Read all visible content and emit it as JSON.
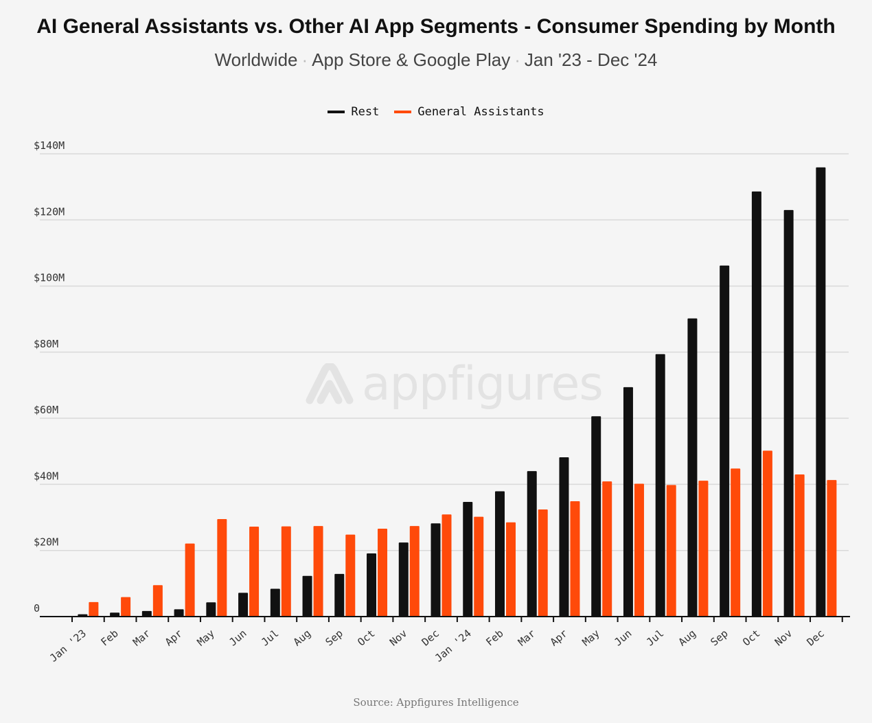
{
  "header": {
    "title": "AI General Assistants vs. Other AI App Segments - Consumer Spending by Month",
    "subtitle_parts": [
      "Worldwide",
      "App Store & Google Play",
      "Jan '23 - Dec '24"
    ],
    "subtitle_separator": "·"
  },
  "watermark": {
    "text": "appfigures",
    "icon": "appfigures-logo-icon"
  },
  "footer": {
    "source": "Source: Appfigures Intelligence"
  },
  "colors": {
    "rest": "#111111",
    "general_assistants": "#ff4a0a",
    "grid": "#d9d9d9"
  },
  "chart_data": {
    "type": "bar",
    "categories": [
      "Jan '23",
      "Feb",
      "Mar",
      "Apr",
      "May",
      "Jun",
      "Jul",
      "Aug",
      "Sep",
      "Oct",
      "Nov",
      "Dec",
      "Jan '24",
      "Feb",
      "Mar",
      "Apr",
      "May",
      "Jun",
      "Jul",
      "Aug",
      "Sep",
      "Oct",
      "Nov",
      "Dec"
    ],
    "series": [
      {
        "name": "Rest",
        "values": [
          0.7,
          1.2,
          1.7,
          2.2,
          4.3,
          7.2,
          8.4,
          12.3,
          12.9,
          19.1,
          22.4,
          28.2,
          34.7,
          37.9,
          44.0,
          48.2,
          60.6,
          69.4,
          79.4,
          90.2,
          106.2,
          128.6,
          123.0,
          135.9
        ]
      },
      {
        "name": "General Assistants",
        "values": [
          4.4,
          5.9,
          9.5,
          22.1,
          29.5,
          27.2,
          27.3,
          27.4,
          24.8,
          26.6,
          27.4,
          30.9,
          30.2,
          28.5,
          32.4,
          34.9,
          40.9,
          40.2,
          39.8,
          41.1,
          44.8,
          50.2,
          43.0,
          41.3
        ]
      }
    ],
    "y_ticks": [
      "0",
      "$20M",
      "$40M",
      "$60M",
      "$80M",
      "$100M",
      "$120M",
      "$140M"
    ],
    "ylim": [
      0,
      140
    ],
    "grid": true,
    "legend_position": "top-center",
    "title": "AI General Assistants vs. Other AI App Segments - Consumer Spending by Month",
    "subtitle": "Worldwide · App Store & Google Play · Jan '23 - Dec '24",
    "xlabel": "",
    "ylabel": ""
  }
}
